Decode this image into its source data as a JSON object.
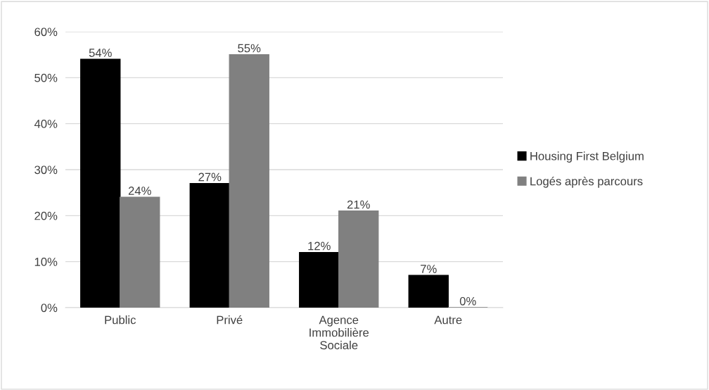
{
  "chart_data": {
    "type": "bar",
    "categories": [
      "Public",
      "Privé",
      "Agence\nImmobilière\nSociale",
      "Autre"
    ],
    "series": [
      {
        "name": "Housing First Belgium",
        "color": "#000000",
        "values": [
          54,
          27,
          12,
          7
        ],
        "value_labels": [
          "54%",
          "27%",
          "12%",
          "7%"
        ]
      },
      {
        "name": "Logés après parcours",
        "color": "#808080",
        "values": [
          24,
          55,
          21,
          0
        ],
        "value_labels": [
          "24%",
          "55%",
          "21%",
          "0%"
        ]
      }
    ],
    "ylim": [
      0,
      60
    ],
    "yticks": [
      {
        "value": 0,
        "label": "0%"
      },
      {
        "value": 10,
        "label": "10%"
      },
      {
        "value": 20,
        "label": "20%"
      },
      {
        "value": 30,
        "label": "30%"
      },
      {
        "value": 40,
        "label": "40%"
      },
      {
        "value": 50,
        "label": "50%"
      },
      {
        "value": 60,
        "label": "60%"
      }
    ],
    "grid": "y",
    "legend": "right"
  }
}
